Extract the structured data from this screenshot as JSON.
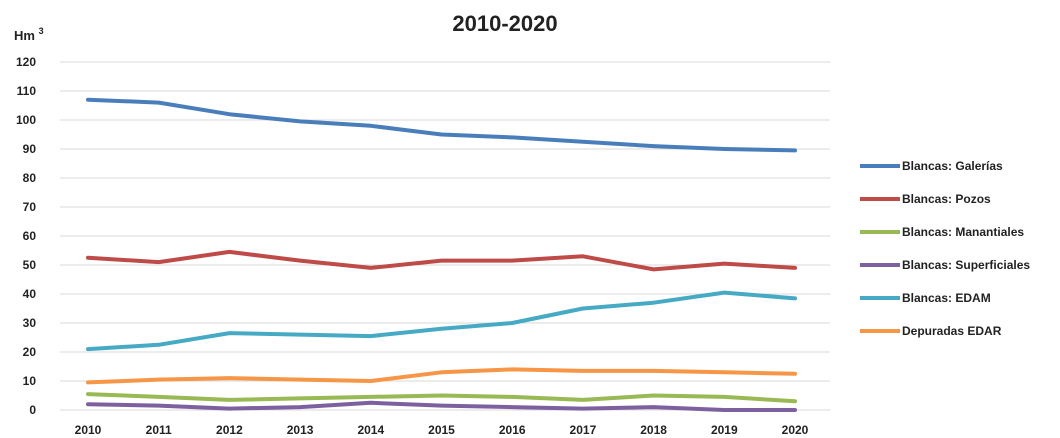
{
  "chart_data": {
    "type": "line",
    "title": "2010-2020",
    "y_unit": "Hm",
    "y_unit_superscript": "3",
    "categories": [
      "2010",
      "2011",
      "2012",
      "2013",
      "2014",
      "2015",
      "2016",
      "2017",
      "2018",
      "2019",
      "2020"
    ],
    "ylim": [
      0,
      120
    ],
    "yticks": [
      0,
      10,
      20,
      30,
      40,
      50,
      60,
      70,
      80,
      90,
      100,
      110,
      120
    ],
    "grid": true,
    "legend_position": "right",
    "series": [
      {
        "name": "Blancas: Galerías",
        "color": "#4a7ebb",
        "values": [
          107,
          106,
          102,
          99.5,
          98,
          95,
          94,
          92.5,
          91,
          90,
          89.5
        ]
      },
      {
        "name": "Blancas: Pozos",
        "color": "#be4b48",
        "values": [
          52.5,
          51,
          54.5,
          51.5,
          49,
          51.5,
          51.5,
          53,
          48.5,
          50.5,
          49
        ]
      },
      {
        "name": "Blancas: Manantiales",
        "color": "#98b954",
        "values": [
          5.5,
          4.5,
          3.5,
          4,
          4.5,
          5,
          4.5,
          3.5,
          5,
          4.5,
          3
        ]
      },
      {
        "name": "Blancas: Superficiales",
        "color": "#7d60a0",
        "values": [
          2,
          1.5,
          0.5,
          1,
          2.5,
          1.5,
          1,
          0.5,
          1,
          0,
          0
        ]
      },
      {
        "name": "Blancas: EDAM",
        "color": "#46aac5",
        "values": [
          21,
          22.5,
          26.5,
          26,
          25.5,
          28,
          30,
          35,
          37,
          40.5,
          38.5
        ]
      },
      {
        "name": "Depuradas EDAR",
        "color": "#f79646",
        "values": [
          9.5,
          10.5,
          11,
          10.5,
          10,
          13,
          14,
          13.5,
          13.5,
          13,
          12.5
        ]
      }
    ]
  }
}
